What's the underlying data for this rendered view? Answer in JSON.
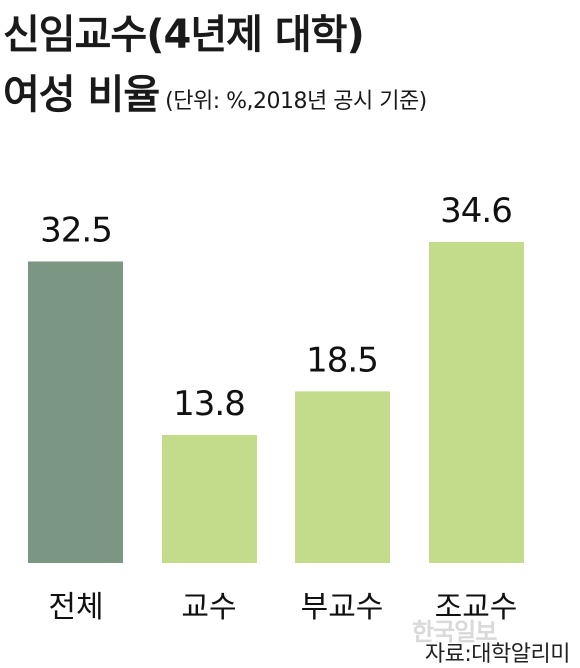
{
  "title_line1": "신임교수(4년제 대학)",
  "title_line2": "여성 비율",
  "subtitle": "(단위: %,2018년 공시 기준)",
  "source": "자료:대학알리미",
  "watermark": "한국일보",
  "colors": {
    "total": "#7b9683",
    "others": "#c3dc8c",
    "text": "#1a1a1a"
  },
  "chart_data": {
    "type": "bar",
    "title": "신임교수(4년제 대학) 여성 비율",
    "subtitle": "(단위: %,2018년 공시 기준)",
    "categories": [
      "전체",
      "교수",
      "부교수",
      "조교수"
    ],
    "values": [
      32.5,
      13.8,
      18.5,
      34.6
    ],
    "value_labels": [
      "32.5",
      "13.8",
      "18.5",
      "34.6"
    ],
    "bar_colors": [
      "#7b9683",
      "#c3dc8c",
      "#c3dc8c",
      "#c3dc8c"
    ],
    "ylim": [
      0,
      34.6
    ],
    "grid": false,
    "legend": "none"
  }
}
